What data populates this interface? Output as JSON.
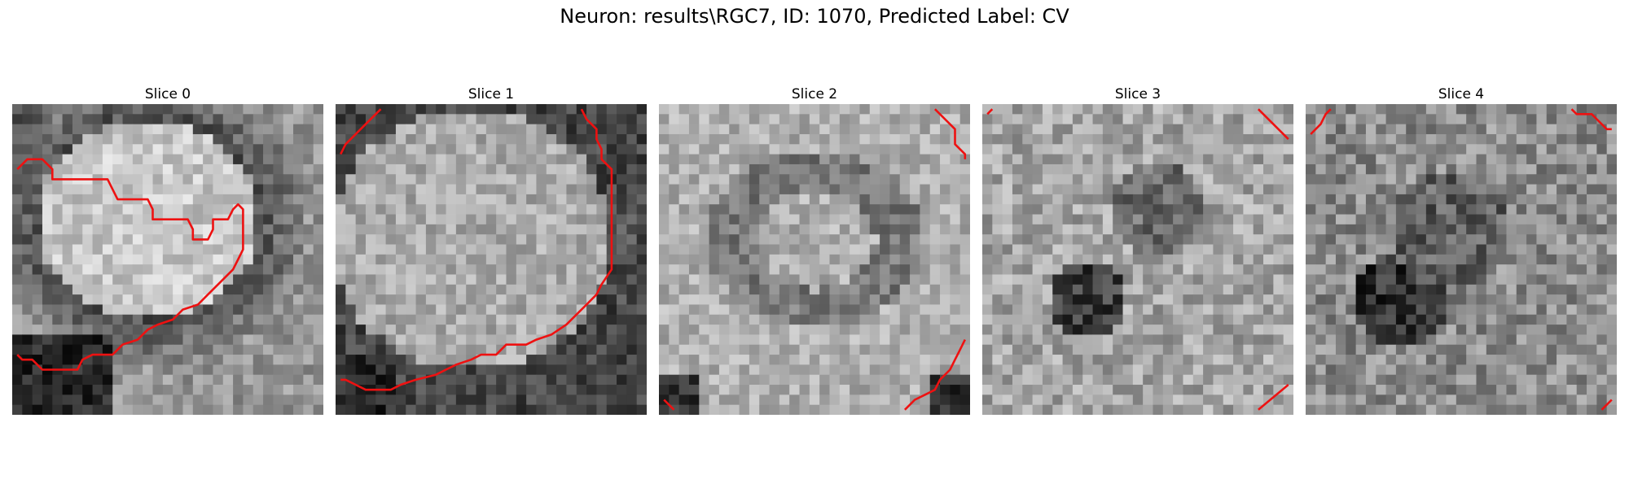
{
  "figure": {
    "title": "Neuron: results\\RGC7, ID: 1070, Predicted Label: CV"
  },
  "slices": [
    {
      "title": "Slice 0"
    },
    {
      "title": "Slice 1"
    },
    {
      "title": "Slice 2"
    },
    {
      "title": "Slice 3"
    },
    {
      "title": "Slice 4"
    }
  ],
  "colors": {
    "contour": "#ee1111"
  }
}
